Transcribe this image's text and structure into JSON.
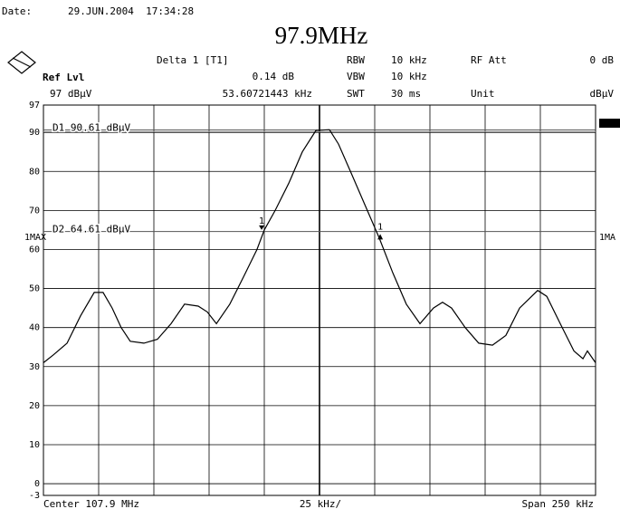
{
  "chart_data": {
    "type": "line",
    "title": "97.9MHz",
    "date_label": "Date:",
    "date": "29.JUN.2004  17:34:28",
    "marker_info": [
      "Delta 1 [T1]",
      "0.14 dB",
      "53.60721443 kHz"
    ],
    "settings": [
      [
        "RBW",
        "10 kHz"
      ],
      [
        "VBW",
        "10 kHz"
      ],
      [
        "SWT",
        "30 ms"
      ]
    ],
    "rf_att": [
      "RF Att",
      "0 dB"
    ],
    "unit": [
      "Unit",
      "dBµV"
    ],
    "ref_level": [
      "Ref Lvl",
      "97 dBµV"
    ],
    "trace_label_left": "1MAX",
    "trace_label_right": "1MA",
    "x_labels": [
      "Center 107.9 MHz",
      "25 kHz/",
      "Span 250 kHz"
    ],
    "x": [
      -125,
      -120.5,
      -114.3,
      -108.2,
      -102,
      -98,
      -93.9,
      -89.8,
      -85.7,
      -79.5,
      -73.4,
      -67.2,
      -61.1,
      -54.9,
      -50.8,
      -46.7,
      -40.6,
      -34.4,
      -28.3,
      -25,
      -20.1,
      -13.9,
      -7.8,
      -1.6,
      4.5,
      8.6,
      14.8,
      20.9,
      27,
      33.2,
      39.3,
      45.5,
      51.6,
      55.7,
      59.8,
      66,
      72.1,
      78.3,
      84.4,
      90.6,
      98.8,
      102.9,
      109,
      115.2,
      119.3,
      121.3,
      125
    ],
    "series": [
      {
        "name": "1MAX",
        "color": "#000000",
        "values": [
          31,
          33,
          36,
          43,
          49,
          49,
          45,
          40,
          36.5,
          36,
          37,
          41,
          46,
          45.5,
          44,
          41,
          46,
          53,
          60,
          65,
          70,
          77,
          85,
          90.5,
          90.7,
          87,
          79,
          71,
          63,
          54,
          46,
          41,
          45,
          46.5,
          45,
          40,
          36,
          35.5,
          38,
          45,
          49.5,
          48,
          41,
          34,
          32,
          34,
          31
        ]
      }
    ],
    "xlim": [
      -125,
      125
    ],
    "ylim": [
      -3,
      97
    ],
    "yticks": [
      97,
      90,
      80,
      70,
      60,
      50,
      40,
      30,
      20,
      10,
      0,
      -3
    ],
    "display_lines": [
      {
        "label": "D1 90.61 dBµV",
        "value": 90.61
      },
      {
        "label": "D2 64.61 dBµV",
        "value": 64.61
      }
    ],
    "markers": [
      {
        "label": "1",
        "x": -26.2,
        "y": 65,
        "direction": "down"
      },
      {
        "label": "1",
        "x": 27.5,
        "y": 63.5,
        "direction": "up"
      }
    ],
    "grid": true
  }
}
